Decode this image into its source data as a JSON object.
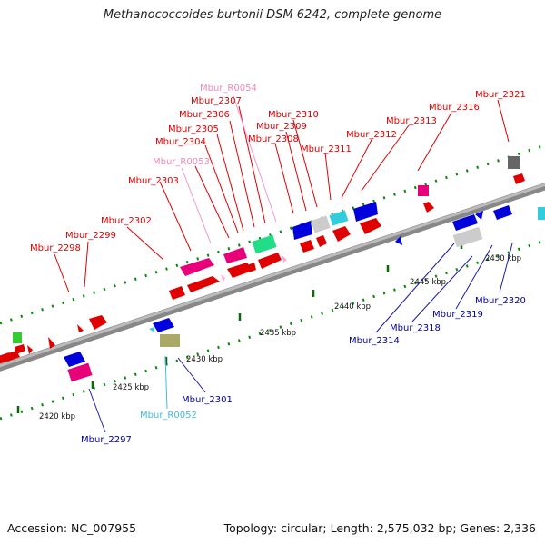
{
  "title": "Methanococcoides burtonii DSM 6242, complete genome",
  "footer": {
    "accession": "Accession: NC_007955",
    "summary": "Topology: circular; Length: 2,575,032 bp; Genes: 2,336"
  },
  "colors": {
    "forward_label": "#dd0000",
    "reverse_label": "#000099",
    "rna_forward_label": "#ee88bb",
    "rna_reverse_label": "#44bbdd",
    "backbone": "#888888"
  },
  "scale_labels": [
    "2420 kbp",
    "2425 kbp",
    "2430 kbp",
    "2435 kbp",
    "2440 kbp",
    "2445 kbp",
    "2450 kbp"
  ],
  "forward_genes": [
    "Mbur_2298",
    "Mbur_2299",
    "Mbur_2302",
    "Mbur_2303",
    "Mbur_R0053",
    "Mbur_2304",
    "Mbur_2305",
    "Mbur_2306",
    "Mbur_2307",
    "Mbur_R0054",
    "Mbur_2308",
    "Mbur_2309",
    "Mbur_2310",
    "Mbur_2311",
    "Mbur_2312",
    "Mbur_2313",
    "Mbur_2316",
    "Mbur_2321"
  ],
  "reverse_genes": [
    "Mbur_2297",
    "Mbur_R0052",
    "Mbur_2301",
    "Mbur_2314",
    "Mbur_2318",
    "Mbur_2319",
    "Mbur_2320"
  ]
}
